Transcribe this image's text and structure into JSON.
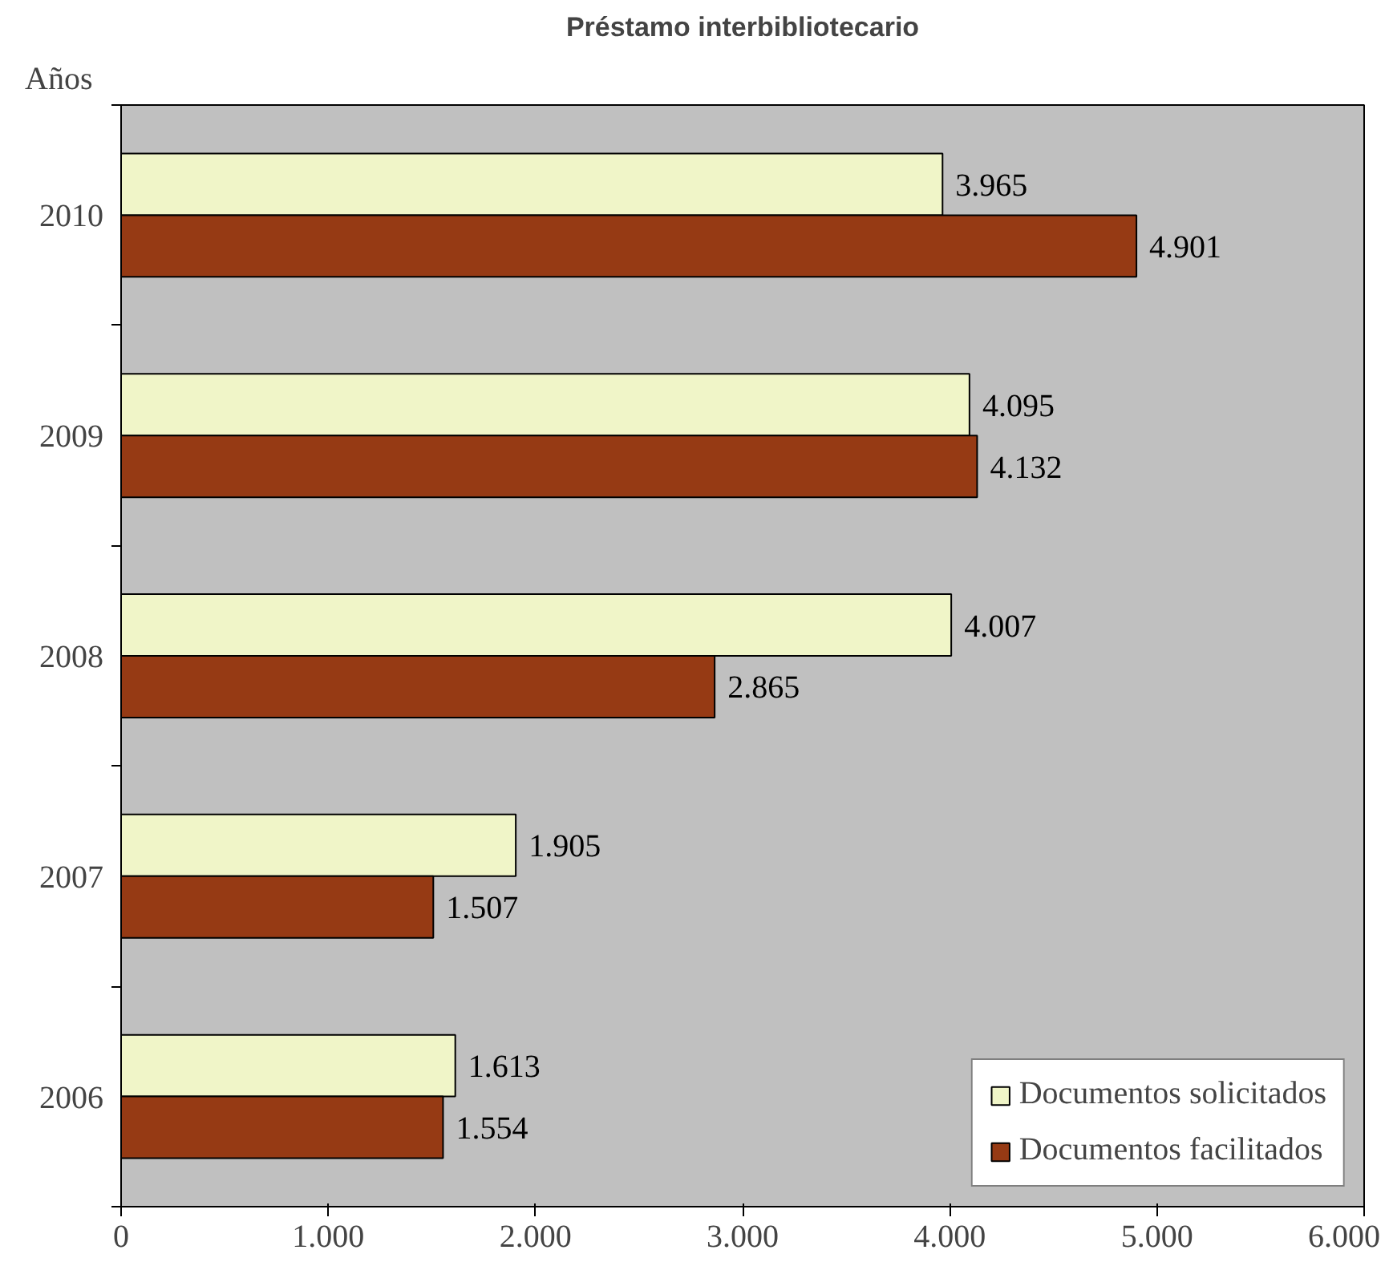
{
  "chart_data": {
    "type": "bar",
    "orientation": "horizontal",
    "title": "Préstamo interbibliotecario",
    "ylabel": "Años",
    "categories": [
      "2010",
      "2009",
      "2008",
      "2007",
      "2006"
    ],
    "series": [
      {
        "name": "Documentos solicitados",
        "color": "#f0f5c8",
        "values": [
          3965,
          4095,
          4007,
          1905,
          1613
        ],
        "value_labels": [
          "3.965",
          "4.095",
          "4.007",
          "1.905",
          "1.613"
        ]
      },
      {
        "name": "Documentos facilitados",
        "color": "#963a14",
        "values": [
          4901,
          4132,
          2865,
          1507,
          1554
        ],
        "value_labels": [
          "4.901",
          "4.132",
          "2.865",
          "1.507",
          "1.554"
        ]
      }
    ],
    "xlim": [
      0,
      6000
    ],
    "xticks": [
      0,
      {
        "value": 1000,
        "label": "1.000"
      },
      {
        "value": 2000,
        "label": "2.000"
      },
      {
        "value": 3000,
        "label": "3.000"
      },
      {
        "value": 4000,
        "label": "4.000"
      },
      {
        "value": 5000,
        "label": "5.000"
      },
      {
        "value": 6000,
        "label": "6.000"
      }
    ],
    "grid": false,
    "legend": "bottom right"
  }
}
